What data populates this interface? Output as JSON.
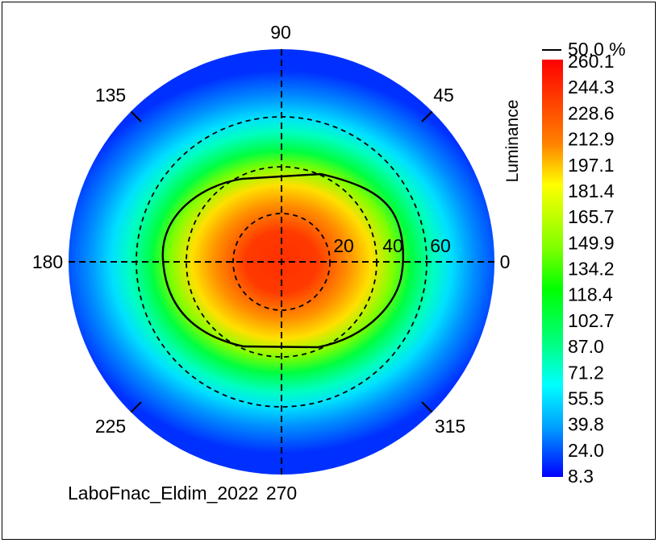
{
  "chart_data": {
    "type": "heatmap",
    "subtype": "polar conoscopic luminance map",
    "colorbar_label": "Luminance",
    "colorbar_ticks": [
      "260.1",
      "244.3",
      "228.6",
      "212.9",
      "197.1",
      "181.4",
      "165.7",
      "149.9",
      "134.2",
      "118.4",
      "102.7",
      "87.0",
      "71.2",
      "55.5",
      "39.8",
      "24.0",
      "8.3"
    ],
    "value_range": [
      8.3,
      260.1
    ],
    "angle_labels": [
      "90",
      "135",
      "45",
      "180",
      "0",
      "225",
      "315",
      "270"
    ],
    "radial_labels": [
      "20",
      "40",
      "60"
    ],
    "contour_label": "50.0 %",
    "footer": "LaboFnac_Eldim_2022",
    "colormap": [
      "#0000ff",
      "#0050ff",
      "#00b0ff",
      "#00ffff",
      "#00ff80",
      "#00ff00",
      "#80ff00",
      "#ffff00",
      "#ff8000",
      "#ff3000"
    ]
  }
}
